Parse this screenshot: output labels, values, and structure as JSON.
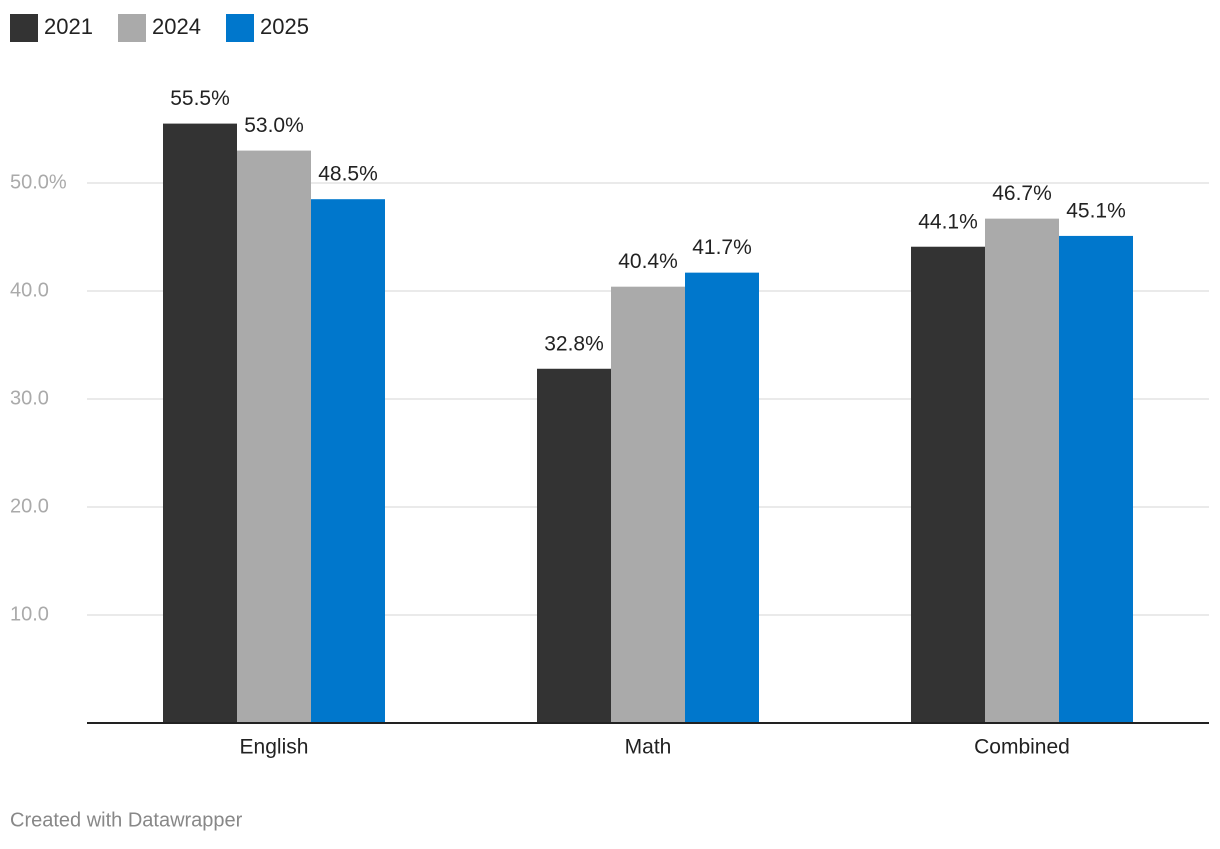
{
  "chart_data": {
    "type": "bar",
    "categories": [
      "English",
      "Math",
      "Combined"
    ],
    "series": [
      {
        "name": "2021",
        "color": "#333333",
        "values": [
          55.5,
          32.8,
          44.1
        ],
        "value_labels": [
          "55.5%",
          "32.8%",
          "44.1%"
        ]
      },
      {
        "name": "2024",
        "color": "#aaaaaa",
        "values": [
          53.0,
          40.4,
          46.7
        ],
        "value_labels": [
          "53.0%",
          "40.4%",
          "46.7%"
        ]
      },
      {
        "name": "2025",
        "color": "#0077cc",
        "values": [
          48.5,
          41.7,
          45.1
        ],
        "value_labels": [
          "48.5%",
          "41.7%",
          "45.1%"
        ]
      }
    ],
    "ylim": [
      0,
      60
    ],
    "yticks": [
      {
        "value": 10,
        "label": "10.0"
      },
      {
        "value": 20,
        "label": "20.0"
      },
      {
        "value": 30,
        "label": "30.0"
      },
      {
        "value": 40,
        "label": "40.0"
      },
      {
        "value": 50,
        "label": "50.0%"
      }
    ],
    "grid": true,
    "legend": "top-left",
    "footer": "Created with Datawrapper"
  }
}
